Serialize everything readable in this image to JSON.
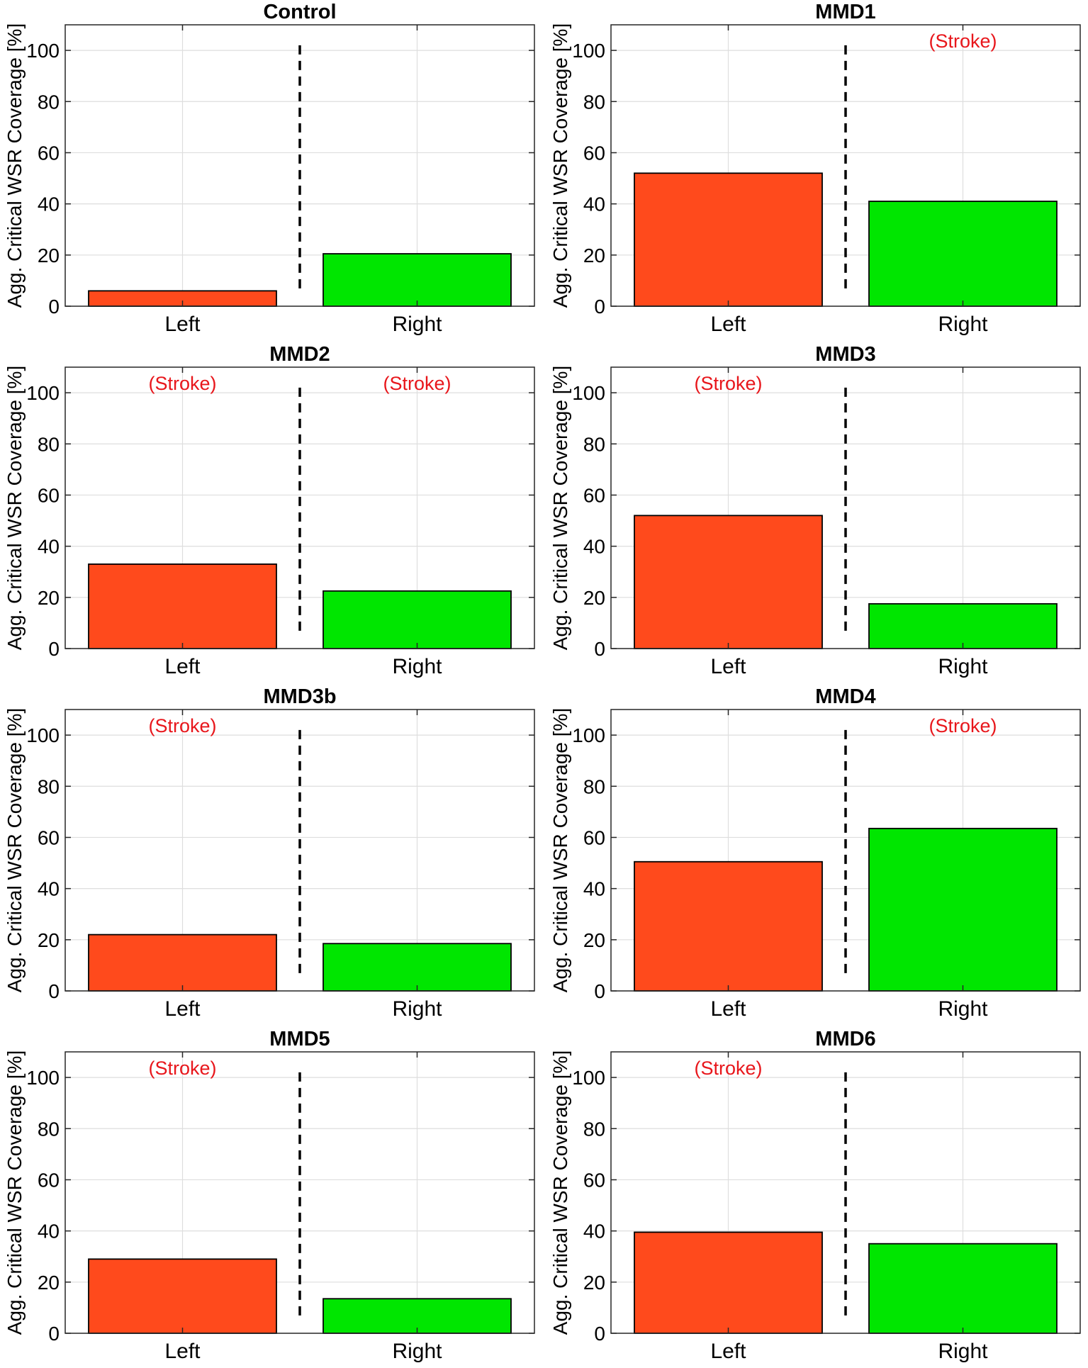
{
  "chart_data": [
    {
      "type": "bar",
      "title": "Control",
      "ylabel": "Agg. Critical WSR Coverage [%]",
      "categories": [
        "Left",
        "Right"
      ],
      "values": [
        6,
        20.5
      ],
      "ylim": [
        0,
        110
      ],
      "yticks": [
        0,
        20,
        40,
        60,
        80,
        100
      ],
      "grid": true,
      "colors": [
        "#FF4A1C",
        "#00E600"
      ],
      "annotations": [
        "",
        ""
      ]
    },
    {
      "type": "bar",
      "title": "MMD1",
      "ylabel": "Agg. Critical WSR Coverage [%]",
      "categories": [
        "Left",
        "Right"
      ],
      "values": [
        52,
        41
      ],
      "ylim": [
        0,
        110
      ],
      "yticks": [
        0,
        20,
        40,
        60,
        80,
        100
      ],
      "grid": true,
      "colors": [
        "#FF4A1C",
        "#00E600"
      ],
      "annotations": [
        "",
        "(Stroke)"
      ]
    },
    {
      "type": "bar",
      "title": "MMD2",
      "ylabel": "Agg. Critical WSR Coverage [%]",
      "categories": [
        "Left",
        "Right"
      ],
      "values": [
        33,
        22.5
      ],
      "ylim": [
        0,
        110
      ],
      "yticks": [
        0,
        20,
        40,
        60,
        80,
        100
      ],
      "grid": true,
      "colors": [
        "#FF4A1C",
        "#00E600"
      ],
      "annotations": [
        "(Stroke)",
        "(Stroke)"
      ]
    },
    {
      "type": "bar",
      "title": "MMD3",
      "ylabel": "Agg. Critical WSR Coverage [%]",
      "categories": [
        "Left",
        "Right"
      ],
      "values": [
        52,
        17.5
      ],
      "ylim": [
        0,
        110
      ],
      "yticks": [
        0,
        20,
        40,
        60,
        80,
        100
      ],
      "grid": true,
      "colors": [
        "#FF4A1C",
        "#00E600"
      ],
      "annotations": [
        "(Stroke)",
        ""
      ]
    },
    {
      "type": "bar",
      "title": "MMD3b",
      "ylabel": "Agg. Critical WSR Coverage [%]",
      "categories": [
        "Left",
        "Right"
      ],
      "values": [
        22,
        18.5
      ],
      "ylim": [
        0,
        110
      ],
      "yticks": [
        0,
        20,
        40,
        60,
        80,
        100
      ],
      "grid": true,
      "colors": [
        "#FF4A1C",
        "#00E600"
      ],
      "annotations": [
        "(Stroke)",
        ""
      ]
    },
    {
      "type": "bar",
      "title": "MMD4",
      "ylabel": "Agg. Critical WSR Coverage [%]",
      "categories": [
        "Left",
        "Right"
      ],
      "values": [
        50.5,
        63.5
      ],
      "ylim": [
        0,
        110
      ],
      "yticks": [
        0,
        20,
        40,
        60,
        80,
        100
      ],
      "grid": true,
      "colors": [
        "#FF4A1C",
        "#00E600"
      ],
      "annotations": [
        "",
        "(Stroke)"
      ]
    },
    {
      "type": "bar",
      "title": "MMD5",
      "ylabel": "Agg. Critical WSR Coverage [%]",
      "categories": [
        "Left",
        "Right"
      ],
      "values": [
        29,
        13.5
      ],
      "ylim": [
        0,
        110
      ],
      "yticks": [
        0,
        20,
        40,
        60,
        80,
        100
      ],
      "grid": true,
      "colors": [
        "#FF4A1C",
        "#00E600"
      ],
      "annotations": [
        "(Stroke)",
        ""
      ]
    },
    {
      "type": "bar",
      "title": "MMD6",
      "ylabel": "Agg. Critical WSR Coverage [%]",
      "categories": [
        "Left",
        "Right"
      ],
      "values": [
        39.5,
        35
      ],
      "ylim": [
        0,
        110
      ],
      "yticks": [
        0,
        20,
        40,
        60,
        80,
        100
      ],
      "grid": true,
      "colors": [
        "#FF4A1C",
        "#00E600"
      ],
      "annotations": [
        "(Stroke)",
        ""
      ]
    }
  ],
  "annotation_color": "#E8161B"
}
